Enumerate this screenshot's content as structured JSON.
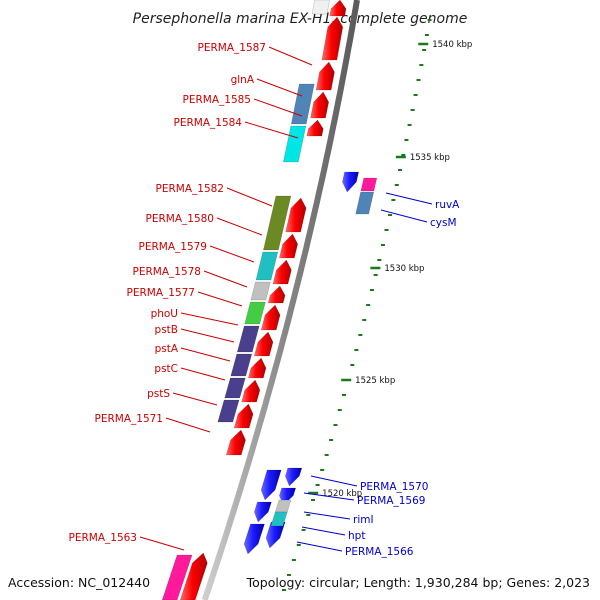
{
  "title": "Persephonella marina EX-H1, complete genome",
  "footer": {
    "accession": "Accession: NC_012440",
    "summary": "Topology: circular; Length: 1,930,284 bp; Genes: 2,023"
  },
  "colors": {
    "forward_gene": "#ff0000",
    "reverse_gene": "#1a1aff",
    "label_forward": "#cc0000",
    "label_reverse": "#0000cc",
    "tick": "#1a7a1a",
    "backbone_light": "#d0d0d0",
    "backbone_dark": "#666666",
    "cog_steelblue": "#4f84b6",
    "cog_cyan": "#00e5e5",
    "cog_olive": "#6b8a24",
    "cog_teal": "#1fbfc4",
    "cog_gray": "#c0c0c0",
    "cog_green": "#44cc44",
    "cog_indigo": "#4a3f8c",
    "cog_pink": "#ff1a9c",
    "cog_white": "#f0f0f0"
  },
  "scale_labels": [
    {
      "text": "1540 kbp",
      "pos": 1540
    },
    {
      "text": "1535 kbp",
      "pos": 1535
    },
    {
      "text": "1530 kbp",
      "pos": 1530
    },
    {
      "text": "1525 kbp",
      "pos": 1525
    },
    {
      "text": "1520 kbp",
      "pos": 1520
    }
  ],
  "forward_gene_labels": [
    {
      "text": "PERMA_1587"
    },
    {
      "text": "glnA"
    },
    {
      "text": "PERMA_1585"
    },
    {
      "text": "PERMA_1584"
    },
    {
      "text": "PERMA_1582"
    },
    {
      "text": "PERMA_1580"
    },
    {
      "text": "PERMA_1579"
    },
    {
      "text": "PERMA_1578"
    },
    {
      "text": "PERMA_1577"
    },
    {
      "text": "phoU"
    },
    {
      "text": "pstB"
    },
    {
      "text": "pstA"
    },
    {
      "text": "pstC"
    },
    {
      "text": "pstS"
    },
    {
      "text": "PERMA_1571"
    },
    {
      "text": "PERMA_1563"
    }
  ],
  "reverse_gene_labels": [
    {
      "text": "ruvA"
    },
    {
      "text": "cysM"
    },
    {
      "text": "PERMA_1570"
    },
    {
      "text": "PERMA_1569"
    },
    {
      "text": "rimI"
    },
    {
      "text": "hpt"
    },
    {
      "text": "PERMA_1566"
    }
  ]
}
